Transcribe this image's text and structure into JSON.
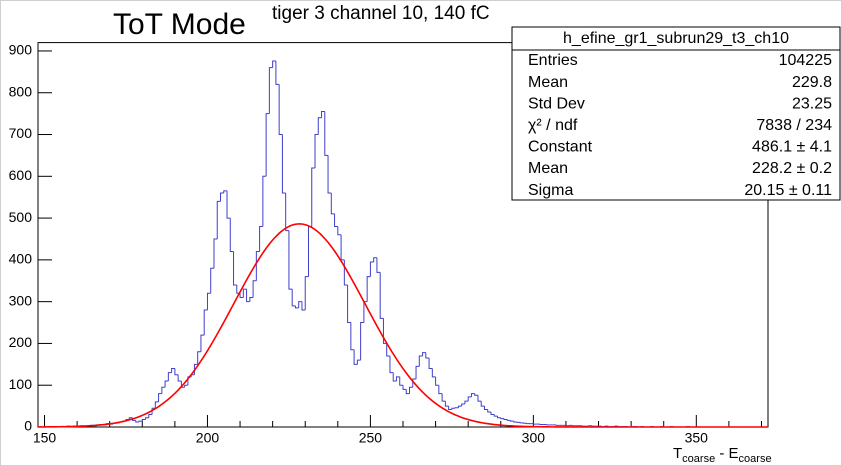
{
  "chart_data": {
    "type": "histogram",
    "title": "ToT Mode",
    "subtitle": "tiger 3 channel 10, 140 fC",
    "xlabel": [
      "T",
      "coarse",
      " - E",
      "coarse"
    ],
    "color": "#3f3fcc",
    "fit_color": "#ff0000",
    "xlim": [
      148,
      372
    ],
    "ylim": [
      0,
      920
    ],
    "xticks": [
      150,
      200,
      250,
      300,
      350
    ],
    "xminorticks": [
      160,
      170,
      180,
      190,
      210,
      220,
      230,
      240,
      260,
      270,
      280,
      290,
      310,
      320,
      330,
      340,
      360,
      370
    ],
    "yticks": [
      0,
      100,
      200,
      300,
      400,
      500,
      600,
      700,
      800,
      900
    ],
    "bins": [
      148,
      149,
      150,
      151,
      152,
      153,
      154,
      155,
      156,
      157,
      158,
      159,
      160,
      161,
      162,
      163,
      164,
      165,
      166,
      167,
      168,
      169,
      170,
      171,
      172,
      173,
      174,
      175,
      176,
      177,
      178,
      179,
      180,
      181,
      182,
      183,
      184,
      185,
      186,
      187,
      188,
      189,
      190,
      191,
      192,
      193,
      194,
      195,
      196,
      197,
      198,
      199,
      200,
      201,
      202,
      203,
      204,
      205,
      206,
      207,
      208,
      209,
      210,
      211,
      212,
      213,
      214,
      215,
      216,
      217,
      218,
      219,
      220,
      221,
      222,
      223,
      224,
      225,
      226,
      227,
      228,
      229,
      230,
      231,
      232,
      233,
      234,
      235,
      236,
      237,
      238,
      239,
      240,
      241,
      242,
      243,
      244,
      245,
      246,
      247,
      248,
      249,
      250,
      251,
      252,
      253,
      254,
      255,
      256,
      257,
      258,
      259,
      260,
      261,
      262,
      263,
      264,
      265,
      266,
      267,
      268,
      269,
      270,
      271,
      272,
      273,
      274,
      275,
      276,
      277,
      278,
      279,
      280,
      281,
      282,
      283,
      284,
      285,
      286,
      287,
      288,
      289,
      290,
      291,
      292,
      293,
      294,
      295,
      296,
      297,
      298,
      299,
      300,
      301,
      302,
      303,
      304,
      305,
      306,
      307,
      308,
      309,
      310,
      311,
      312,
      313,
      314,
      315,
      316,
      317,
      318,
      319,
      320,
      321,
      322,
      323,
      324,
      325,
      326,
      327,
      328,
      329,
      330,
      331,
      332,
      333,
      334,
      335,
      336,
      337,
      338,
      339,
      340,
      341,
      342,
      343,
      344,
      345,
      346,
      347,
      348,
      349,
      350,
      351,
      352,
      353,
      354,
      355,
      356,
      357,
      358,
      359,
      360,
      361,
      362,
      363,
      364,
      365,
      366,
      367,
      368,
      369,
      370,
      371,
      372
    ],
    "values": [
      0,
      0,
      1,
      0,
      0,
      1,
      0,
      1,
      1,
      2,
      1,
      2,
      2,
      3,
      2,
      3,
      4,
      3,
      5,
      6,
      5,
      8,
      7,
      9,
      10,
      12,
      14,
      18,
      22,
      16,
      12,
      14,
      18,
      22,
      30,
      45,
      60,
      80,
      95,
      110,
      130,
      140,
      125,
      110,
      95,
      100,
      120,
      125,
      150,
      180,
      220,
      280,
      320,
      380,
      450,
      540,
      560,
      565,
      500,
      420,
      340,
      320,
      310,
      330,
      300,
      310,
      350,
      420,
      480,
      600,
      750,
      860,
      876,
      820,
      700,
      560,
      470,
      330,
      290,
      285,
      300,
      280,
      360,
      480,
      620,
      700,
      740,
      755,
      650,
      560,
      510,
      480,
      460,
      400,
      340,
      250,
      185,
      150,
      160,
      250,
      300,
      360,
      395,
      405,
      370,
      260,
      200,
      170,
      130,
      110,
      120,
      100,
      90,
      80,
      95,
      115,
      145,
      170,
      178,
      165,
      140,
      120,
      100,
      80,
      62,
      50,
      42,
      45,
      46,
      50,
      55,
      62,
      72,
      80,
      76,
      62,
      50,
      42,
      36,
      30,
      26,
      22,
      20,
      18,
      16,
      14,
      12,
      11,
      10,
      9,
      8,
      8,
      7,
      7,
      6,
      6,
      5,
      5,
      5,
      4,
      4,
      4,
      3,
      4,
      3,
      3,
      3,
      2,
      2,
      3,
      2,
      2,
      2,
      1,
      2,
      1,
      1,
      2,
      1,
      1,
      1,
      0,
      1,
      1,
      0,
      1,
      0,
      0,
      1,
      0,
      0,
      1,
      0,
      0,
      1,
      0,
      0,
      0,
      0,
      1,
      0,
      0,
      0,
      0,
      0,
      0,
      0,
      0,
      0,
      0,
      0,
      0,
      0,
      0,
      0,
      0,
      0,
      0,
      0,
      0,
      0,
      0,
      0,
      0
    ],
    "stats_title": "h_efine_gr1_subrun29_t3_ch10",
    "stats_rows": [
      {
        "name": "Entries",
        "label": "104225"
      },
      {
        "name": "Mean",
        "label": "229.8"
      },
      {
        "name": "Std Dev",
        "label": "23.25"
      },
      {
        "name": "χ² / ndf",
        "label": "7838 / 234"
      },
      {
        "name": "Constant",
        "value": 486.1,
        "label": "486.1 ± 4.1"
      },
      {
        "name": "Mean",
        "value": 228.2,
        "label": "228.2 ± 0.2"
      },
      {
        "name": "Sigma",
        "value": 20.15,
        "label": "20.15 ± 0.11"
      }
    ]
  }
}
